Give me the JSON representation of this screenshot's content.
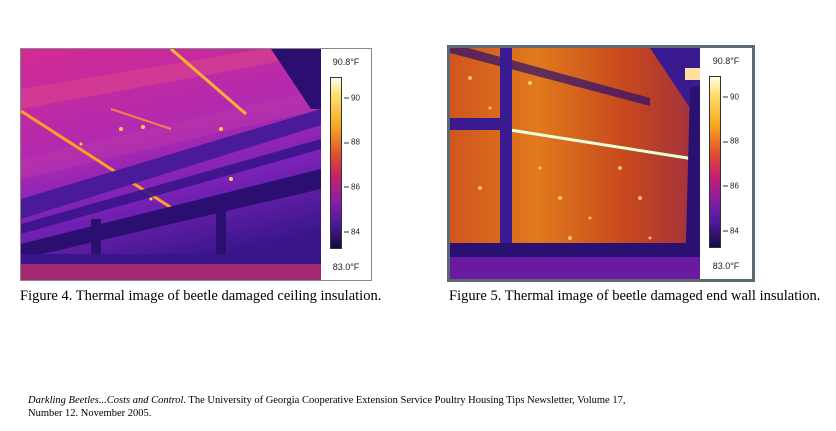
{
  "figures": [
    {
      "scale_max": "90.8°F",
      "scale_min": "83.0°F",
      "ticks": [
        "90",
        "88",
        "86",
        "84"
      ],
      "caption": "Figure 4.  Thermal image of beetle damaged ceiling insulation."
    },
    {
      "scale_max": "90.8°F",
      "scale_min": "83.0°F",
      "ticks": [
        "90",
        "88",
        "86",
        "84"
      ],
      "caption": "Figure 5.  Thermal image of beetle damaged end wall insulation."
    }
  ],
  "citation": {
    "title": "Darkling Beetles...Costs and Control",
    "rest": ". The University of Georgia Cooperative Extension Service Poultry Housing Tips Newsletter, Volume 17, Number 12. November 2005."
  },
  "colors": {
    "thermal_hot": "#ffe070",
    "thermal_mid": "#c8206a",
    "thermal_cold": "#2a0d6a",
    "frame_border": "#5a6a70"
  }
}
